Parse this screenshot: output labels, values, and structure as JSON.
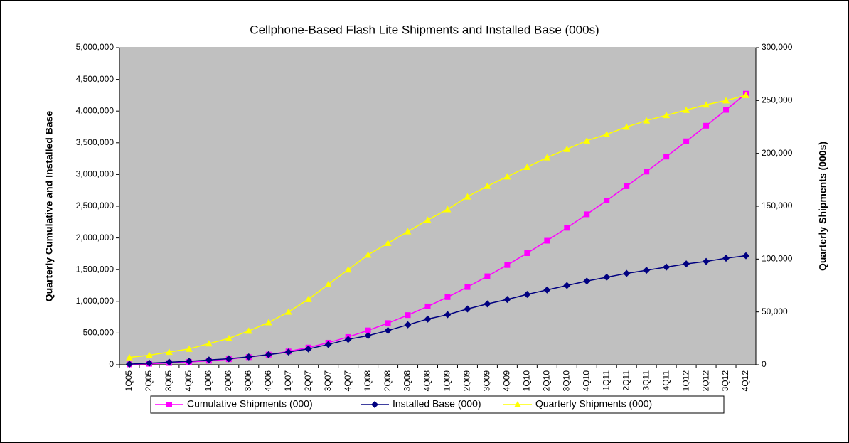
{
  "chart_data": {
    "type": "line",
    "title": "Cellphone-Based Flash Lite Shipments and Installed Base (000s)",
    "y_label": "Quarterly Cumulative and Installed Base",
    "y2_label": "Quarterly Shipments (000s)",
    "categories": [
      "1Q05",
      "2Q05",
      "3Q05",
      "4Q05",
      "1Q06",
      "2Q06",
      "3Q06",
      "4Q06",
      "1Q07",
      "2Q07",
      "3Q07",
      "4Q07",
      "1Q08",
      "2Q08",
      "3Q08",
      "4Q08",
      "1Q09",
      "2Q09",
      "3Q09",
      "4Q09",
      "1Q10",
      "2Q10",
      "3Q10",
      "4Q10",
      "1Q11",
      "2Q11",
      "3Q11",
      "4Q11",
      "1Q12",
      "2Q12",
      "3Q12",
      "4Q12"
    ],
    "series": [
      {
        "name": "Cumulative Shipments (000)",
        "color": "#ff00ff",
        "marker": "square",
        "values": [
          7000,
          16000,
          28000,
          43000,
          63000,
          88000,
          120000,
          160000,
          210000,
          272000,
          348000,
          438000,
          542000,
          657000,
          783000,
          920000,
          1067000,
          1226000,
          1395000,
          1573000,
          1760000,
          1956000,
          2160000,
          2372000,
          2590000,
          2815000,
          3046000,
          3282000,
          3523000,
          3769000,
          4019000,
          4274000
        ]
      },
      {
        "name": "Installed Base (000)",
        "color": "#000080",
        "marker": "diamond",
        "values": [
          10000,
          25000,
          40000,
          55000,
          75000,
          95000,
          125000,
          160000,
          200000,
          250000,
          320000,
          400000,
          460000,
          540000,
          630000,
          720000,
          790000,
          880000,
          960000,
          1030000,
          1110000,
          1180000,
          1250000,
          1320000,
          1380000,
          1440000,
          1490000,
          1540000,
          1590000,
          1630000,
          1680000,
          1720000
        ]
      },
      {
        "name": "Quarterly Shipments (000)",
        "color": "#ffff00",
        "marker": "triangle",
        "axis": "y2",
        "values": [
          7000,
          9000,
          12000,
          15000,
          20000,
          25000,
          32000,
          40000,
          50000,
          62000,
          76000,
          90000,
          104000,
          115000,
          126000,
          137000,
          147000,
          159000,
          169000,
          178000,
          187000,
          196000,
          204000,
          212000,
          218000,
          225000,
          231000,
          236000,
          241000,
          246000,
          250000,
          255000
        ]
      }
    ],
    "ylim": [
      0,
      5000000
    ],
    "yticks": [
      0,
      {
        "value": 500000,
        "label": "500,000"
      },
      {
        "value": 1000000,
        "label": "1,000,000"
      },
      {
        "value": 1500000,
        "label": "1,500,000"
      },
      {
        "value": 2000000,
        "label": "2,000,000"
      },
      {
        "value": 2500000,
        "label": "2,500,000"
      },
      {
        "value": 3000000,
        "label": "3,000,000"
      },
      {
        "value": 3500000,
        "label": "3,500,000"
      },
      {
        "value": 4000000,
        "label": "4,000,000"
      },
      {
        "value": 4500000,
        "label": "4,500,000"
      },
      {
        "value": 5000000,
        "label": "5,000,000"
      }
    ],
    "y2lim": [
      0,
      300000
    ],
    "y2ticks": [
      0,
      {
        "value": 50000,
        "label": "50,000"
      },
      {
        "value": 100000,
        "label": "100,000"
      },
      {
        "value": 150000,
        "label": "150,000"
      },
      {
        "value": 200000,
        "label": "200,000"
      },
      {
        "value": 250000,
        "label": "250,000"
      },
      {
        "value": 300000,
        "label": "300,000"
      }
    ],
    "plot_background": "#c0c0c0",
    "grid": false,
    "legend": "bottom"
  }
}
